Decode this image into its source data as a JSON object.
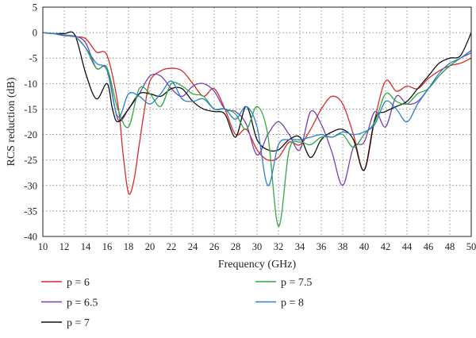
{
  "chart_data": {
    "type": "line",
    "title": "",
    "xlabel": "Frequency (GHz)",
    "ylabel": "RCS reduction (dB)",
    "xlim": [
      10,
      50
    ],
    "ylim": [
      -40,
      5
    ],
    "xticks": [
      "10",
      "12",
      "14",
      "16",
      "18",
      "20",
      "22",
      "24",
      "26",
      "28",
      "30",
      "32",
      "34",
      "36",
      "38",
      "40",
      "42",
      "44",
      "46",
      "48",
      "50"
    ],
    "yticks": [
      "5",
      "0",
      "-5",
      "-10",
      "-15",
      "-20",
      "-25",
      "-30",
      "-35",
      "-40"
    ],
    "grid": true,
    "legend_position": "bottom",
    "series": [
      {
        "name": "p = 6",
        "color": "#d92a2a",
        "x": [
          10,
          11,
          12,
          13,
          14,
          15,
          16,
          17,
          17.5,
          18,
          18.5,
          19,
          19.5,
          20,
          21,
          22,
          23,
          24,
          25,
          26,
          27,
          28,
          29,
          30,
          31,
          32,
          33,
          34,
          35,
          36,
          37,
          38,
          39,
          40,
          41,
          42,
          43,
          44,
          45,
          46,
          47,
          48,
          49,
          50
        ],
        "y": [
          0,
          -0.2,
          -0.5,
          -0.8,
          -1.2,
          -3.8,
          -4.5,
          -14,
          -24,
          -31.5,
          -29,
          -22,
          -15,
          -9.5,
          -7.5,
          -7,
          -7.5,
          -10,
          -12.5,
          -11,
          -15,
          -20,
          -19,
          -23,
          -25,
          -24.5,
          -21.5,
          -22,
          -19,
          -15,
          -12.5,
          -14,
          -20,
          -27,
          -17,
          -9.5,
          -11.5,
          -10.5,
          -11,
          -9,
          -7.5,
          -6.5,
          -6,
          -5
        ]
      },
      {
        "name": "p = 6.5",
        "color": "#7b3fb5",
        "x": [
          10,
          11,
          12,
          13,
          14,
          15,
          16,
          17,
          18,
          19,
          20,
          21,
          22,
          23,
          24,
          25,
          26,
          27,
          28,
          29,
          30,
          31,
          32,
          33,
          34,
          35,
          36,
          37,
          38,
          39,
          40,
          41,
          42,
          43,
          44,
          45,
          46,
          47,
          48,
          49,
          50
        ],
        "y": [
          0,
          -0.2,
          -0.6,
          -0.7,
          -2,
          -7,
          -7,
          -17,
          -15,
          -12,
          -8.5,
          -8.5,
          -11,
          -12.5,
          -10.5,
          -10,
          -11.5,
          -15,
          -15.5,
          -18,
          -24,
          -20,
          -17.5,
          -20,
          -23,
          -15.5,
          -18,
          -23.5,
          -30,
          -22.5,
          -21.5,
          -15.5,
          -18.5,
          -12.5,
          -14,
          -13.5,
          -11,
          -8.5,
          -6.5,
          -5,
          -4
        ]
      },
      {
        "name": "p = 7",
        "color": "#111111",
        "x": [
          10,
          11,
          12,
          13,
          14,
          15,
          16,
          16.5,
          17,
          18,
          19,
          20,
          21,
          22,
          23,
          24,
          25,
          26,
          27,
          28,
          29,
          30,
          31,
          32,
          33,
          34,
          35,
          36,
          37,
          38,
          39,
          40,
          41,
          42,
          43,
          44,
          45,
          46,
          47,
          48,
          49,
          50
        ],
        "y": [
          0,
          -0.2,
          -0.2,
          -0.5,
          -8,
          -13,
          -10,
          -15,
          -17.5,
          -15,
          -12,
          -12,
          -12.5,
          -11,
          -11,
          -13.5,
          -15,
          -15.5,
          -16,
          -20.5,
          -14.5,
          -21,
          -23,
          -23,
          -21,
          -20.5,
          -24.5,
          -21,
          -19.5,
          -19,
          -21,
          -27,
          -17,
          -15.5,
          -14.5,
          -13.5,
          -11,
          -8.5,
          -6,
          -5,
          -4.5,
          0
        ]
      },
      {
        "name": "p = 7.5",
        "color": "#2eaa3e",
        "x": [
          10,
          11,
          12,
          13,
          14,
          15,
          16,
          17,
          18,
          19,
          20,
          21,
          22,
          23,
          24,
          25,
          26,
          27,
          28,
          29,
          30,
          31,
          32,
          33,
          34,
          35,
          36,
          37,
          38,
          39,
          40,
          41,
          42,
          43,
          44,
          45,
          46,
          47,
          48,
          49,
          50
        ],
        "y": [
          0,
          -0.2,
          -0.5,
          -0.8,
          -3,
          -7,
          -7,
          -15,
          -18.5,
          -11,
          -12,
          -14.5,
          -10,
          -10.5,
          -12,
          -12.5,
          -15,
          -15,
          -16,
          -19,
          -14.5,
          -20,
          -38,
          -23,
          -21.5,
          -22,
          -20.5,
          -20.5,
          -20,
          -22.5,
          -20,
          -17.5,
          -12,
          -13.5,
          -14,
          -12,
          -11,
          -8.5,
          -6.5,
          -5,
          -3.5
        ]
      },
      {
        "name": "p = 8",
        "color": "#2a7fd0",
        "x": [
          10,
          11,
          12,
          13,
          14,
          15,
          16,
          17,
          18,
          19,
          20,
          21,
          22,
          23,
          24,
          25,
          26,
          27,
          28,
          29,
          30,
          31,
          32,
          33,
          34,
          35,
          36,
          37,
          38,
          39,
          40,
          41,
          42,
          43,
          44,
          45,
          46,
          47,
          48,
          49,
          50
        ],
        "y": [
          0,
          -0.2,
          -0.5,
          -0.8,
          -3,
          -6,
          -7.5,
          -16.5,
          -12,
          -12.5,
          -14,
          -12,
          -9.5,
          -13,
          -13.5,
          -13,
          -15,
          -15,
          -17,
          -14.5,
          -18.5,
          -30,
          -22,
          -21,
          -21,
          -20.5,
          -20,
          -20.5,
          -19.5,
          -20,
          -19.5,
          -18,
          -13.5,
          -15,
          -17.5,
          -14,
          -11,
          -8,
          -6,
          -5,
          -3.5
        ]
      }
    ]
  }
}
